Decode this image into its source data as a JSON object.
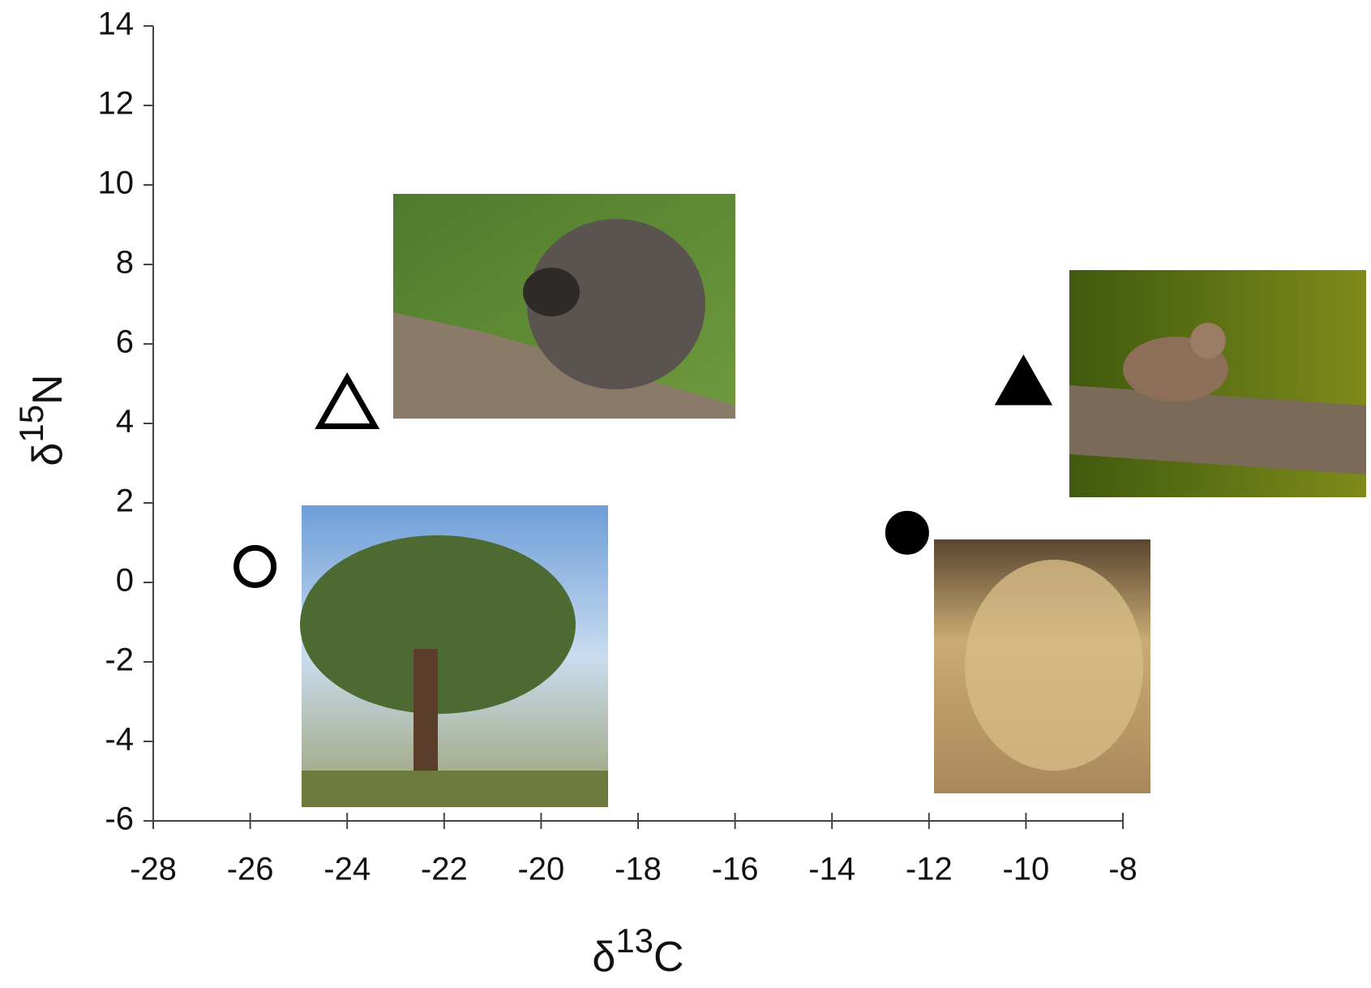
{
  "chart_data": {
    "type": "scatter",
    "xlabel": {
      "symbol": "δ",
      "sup": "13",
      "element": "C"
    },
    "ylabel": {
      "symbol": "δ",
      "sup": "15",
      "element": "N"
    },
    "x": [
      -25.9,
      -24,
      -10.05,
      -12.45
    ],
    "y": [
      0.4,
      4.45,
      5.0,
      1.25
    ],
    "markers": [
      "circle-open",
      "triangle-open",
      "triangle-filled",
      "circle-filled"
    ],
    "color": "#000000",
    "xlim": [
      -28,
      -8
    ],
    "xticks": [
      -28,
      -26,
      -24,
      -22,
      -20,
      -18,
      -16,
      -14,
      -12,
      -10,
      -8
    ],
    "ylim": [
      -6,
      14
    ],
    "yticks": [
      -6,
      -4,
      -2,
      0,
      2,
      4,
      6,
      8,
      10,
      12,
      14
    ],
    "grid": false
  }
}
